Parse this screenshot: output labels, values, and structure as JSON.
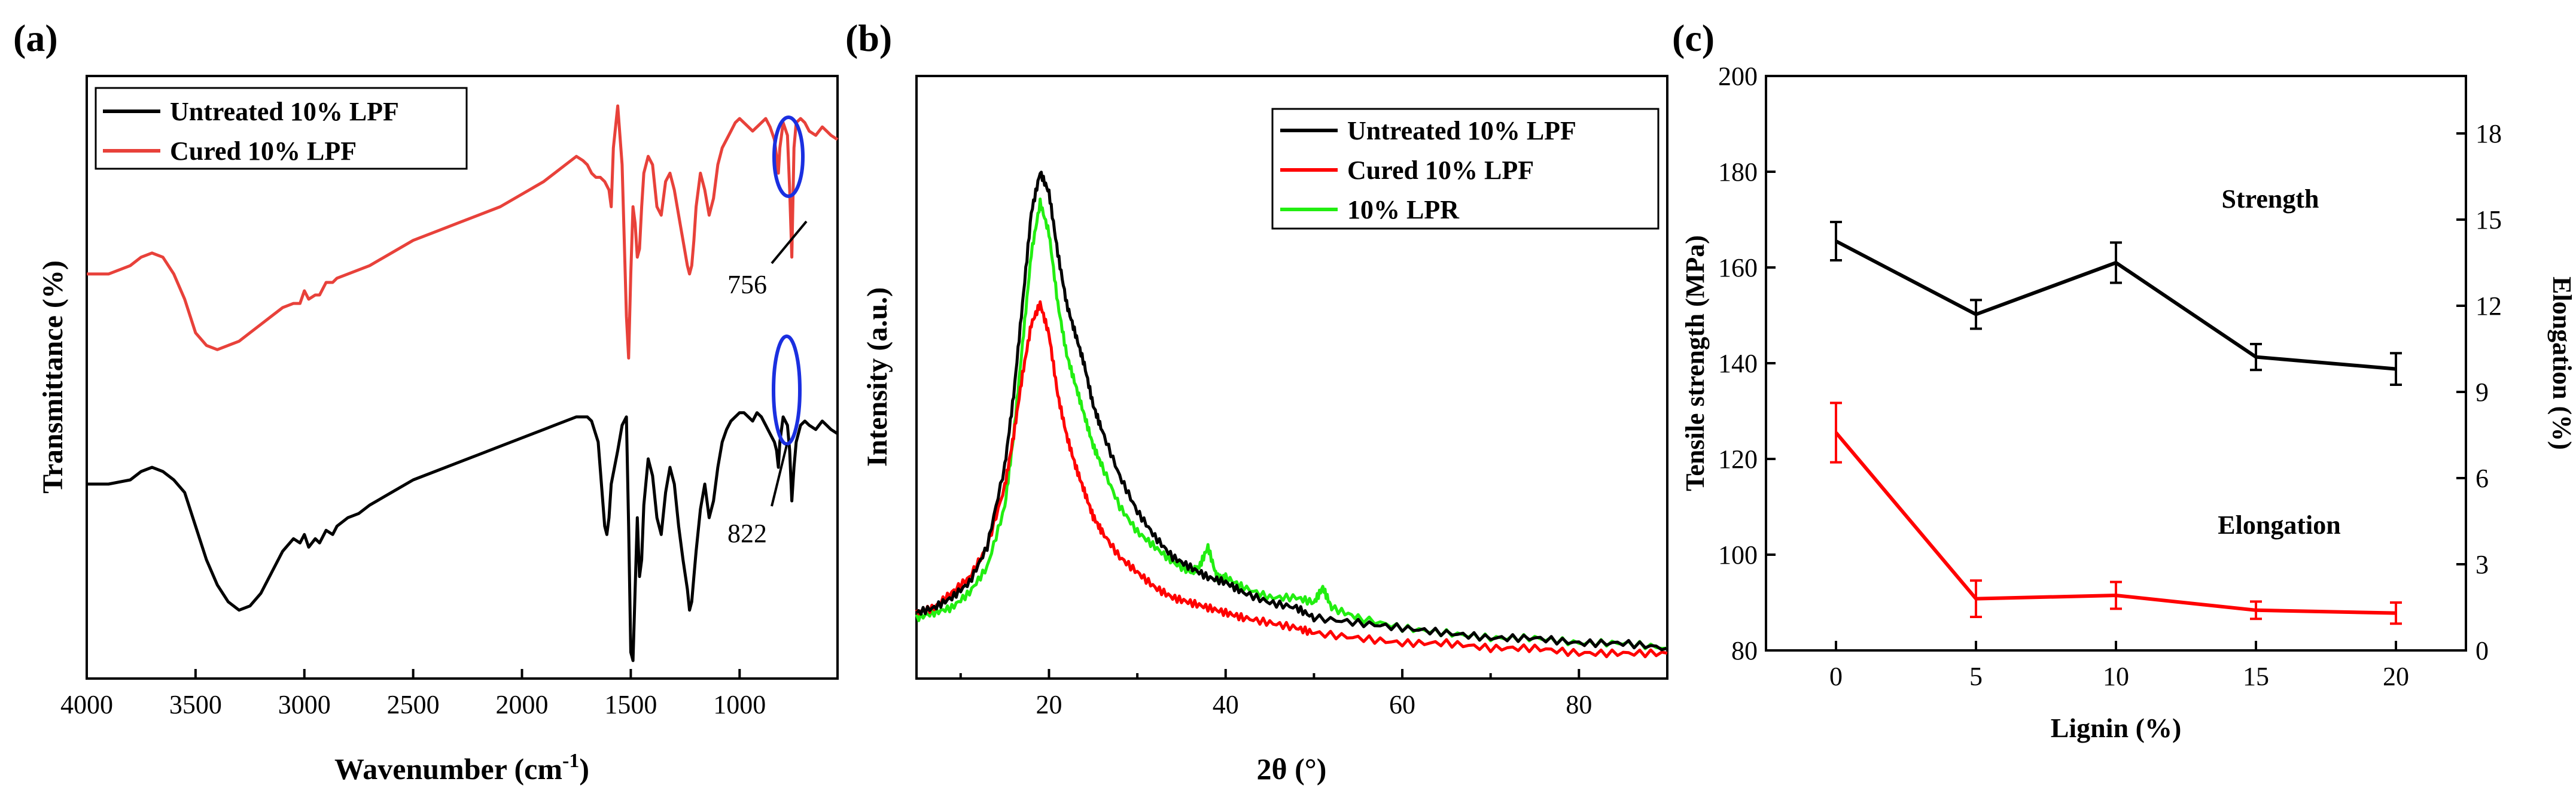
{
  "panels": {
    "a": "(a)",
    "b": "(b)",
    "c": "(c)"
  },
  "colors": {
    "black": "#000000",
    "red": "#ff0000",
    "ftir_red": "#e8413a",
    "green": "#22ee11",
    "blue": "#1a2fe0"
  },
  "chart_data": [
    {
      "id": "a",
      "type": "line",
      "xlabel": "Wavenumber (cm",
      "xlabel_sup": "-1",
      "xlabel_tail": ")",
      "ylabel": "Transmittance (%)",
      "xlim": [
        4000,
        550
      ],
      "xticks": [
        "4000",
        "3500",
        "3000",
        "2500",
        "2000",
        "1500",
        "1000"
      ],
      "xtick_values": [
        4000,
        3500,
        3000,
        2500,
        2000,
        1500,
        1000
      ],
      "legend": [
        "Untreated 10% LPF",
        "Cured 10% LPF"
      ],
      "annotations": [
        {
          "text": "756",
          "x": 760
        },
        {
          "text": "822",
          "x": 822
        }
      ],
      "series": [
        {
          "name": "Untreated 10% LPF",
          "color": "#000000",
          "x": [
            4000,
            3900,
            3800,
            3750,
            3700,
            3650,
            3600,
            3550,
            3500,
            3450,
            3400,
            3350,
            3300,
            3250,
            3200,
            3150,
            3100,
            3050,
            3020,
            3000,
            2980,
            2950,
            2930,
            2900,
            2870,
            2850,
            2800,
            2750,
            2700,
            2600,
            2500,
            2400,
            2300,
            2200,
            2100,
            2000,
            1900,
            1850,
            1800,
            1750,
            1700,
            1680,
            1650,
            1620,
            1610,
            1600,
            1590,
            1560,
            1540,
            1520,
            1510,
            1500,
            1490,
            1480,
            1470,
            1460,
            1450,
            1440,
            1420,
            1400,
            1380,
            1360,
            1340,
            1320,
            1300,
            1280,
            1260,
            1240,
            1230,
            1220,
            1210,
            1200,
            1180,
            1160,
            1140,
            1120,
            1100,
            1080,
            1060,
            1040,
            1020,
            1000,
            980,
            960,
            940,
            920,
            900,
            880,
            860,
            840,
            830,
            822,
            815,
            800,
            780,
            770,
            760,
            750,
            740,
            720,
            700,
            680,
            650,
            620,
            600,
            580,
            550
          ],
          "y": [
            30,
            30,
            31,
            33,
            34,
            33,
            31,
            28,
            20,
            12,
            6,
            2,
            0,
            1,
            4,
            9,
            14,
            17,
            16,
            18,
            15,
            17,
            16,
            19,
            18,
            20,
            22,
            23,
            25,
            28,
            31,
            33,
            35,
            37,
            39,
            41,
            43,
            44,
            45,
            46,
            46,
            45,
            40,
            20,
            18,
            22,
            30,
            38,
            44,
            46,
            20,
            -10,
            -12,
            5,
            22,
            8,
            12,
            25,
            36,
            32,
            22,
            18,
            28,
            34,
            30,
            20,
            12,
            5,
            0,
            2,
            8,
            14,
            24,
            30,
            22,
            26,
            34,
            40,
            43,
            45,
            46,
            47,
            47,
            46,
            45,
            47,
            46,
            44,
            42,
            40,
            38,
            34,
            40,
            46,
            44,
            38,
            26,
            34,
            40,
            44,
            45,
            44,
            43,
            45,
            44,
            43,
            42
          ],
          "ylim": [
            -12,
            120
          ]
        },
        {
          "name": "Cured 10% LPF",
          "color": "#e8413a",
          "x": [
            4000,
            3900,
            3800,
            3750,
            3700,
            3650,
            3600,
            3550,
            3500,
            3450,
            3400,
            3350,
            3300,
            3250,
            3200,
            3150,
            3100,
            3050,
            3020,
            3000,
            2980,
            2950,
            2930,
            2900,
            2870,
            2850,
            2800,
            2750,
            2700,
            2600,
            2500,
            2400,
            2300,
            2200,
            2100,
            2000,
            1900,
            1850,
            1800,
            1750,
            1720,
            1700,
            1680,
            1660,
            1640,
            1620,
            1600,
            1590,
            1580,
            1560,
            1540,
            1520,
            1510,
            1500,
            1490,
            1480,
            1470,
            1460,
            1450,
            1440,
            1420,
            1400,
            1380,
            1360,
            1340,
            1320,
            1300,
            1280,
            1260,
            1240,
            1230,
            1220,
            1210,
            1200,
            1180,
            1160,
            1140,
            1120,
            1100,
            1080,
            1060,
            1040,
            1020,
            1000,
            980,
            960,
            940,
            920,
            900,
            880,
            860,
            840,
            830,
            822,
            815,
            800,
            780,
            770,
            760,
            750,
            740,
            720,
            700,
            680,
            650,
            620,
            600,
            580,
            550
          ],
          "y": [
            80,
            80,
            82,
            84,
            85,
            84,
            80,
            74,
            66,
            63,
            62,
            63,
            64,
            66,
            68,
            70,
            72,
            73,
            73,
            76,
            74,
            75,
            75,
            78,
            78,
            79,
            80,
            81,
            82,
            85,
            88,
            90,
            92,
            94,
            96,
            99,
            102,
            104,
            106,
            108,
            107,
            106,
            104,
            103,
            103,
            102,
            100,
            96,
            110,
            120,
            106,
            70,
            60,
            80,
            96,
            92,
            84,
            86,
            96,
            104,
            108,
            106,
            96,
            94,
            102,
            104,
            100,
            94,
            88,
            82,
            80,
            82,
            88,
            96,
            104,
            100,
            94,
            98,
            106,
            110,
            112,
            114,
            116,
            117,
            116,
            115,
            114,
            115,
            116,
            117,
            115,
            112,
            108,
            104,
            110,
            116,
            113,
            100,
            84,
            110,
            116,
            117,
            116,
            114,
            113,
            115,
            114,
            113,
            112
          ],
          "ylim": [
            -12,
            120
          ]
        }
      ]
    },
    {
      "id": "b",
      "type": "line",
      "xlabel": "2θ (°)",
      "ylabel": "Intensity (a.u.)",
      "xlim": [
        5,
        90
      ],
      "xticks": [
        "20",
        "40",
        "60",
        "80"
      ],
      "xtick_values": [
        20,
        40,
        60,
        80
      ],
      "legend": [
        "Untreated 10% LPF",
        "Cured 10% LPF",
        "10% LPR"
      ],
      "series": [
        {
          "name": "Untreated 10% LPF",
          "color": "#000000",
          "x": [
            5,
            7,
            9,
            11,
            13,
            15,
            16,
            17,
            18,
            19,
            20,
            21,
            22,
            23,
            24,
            25,
            26,
            28,
            30,
            32,
            34,
            36,
            38,
            40,
            42,
            45,
            48,
            50,
            55,
            60,
            65,
            70,
            75,
            80,
            85,
            90
          ],
          "y": [
            9,
            10,
            12,
            15,
            22,
            38,
            52,
            70,
            88,
            96,
            92,
            80,
            70,
            64,
            58,
            50,
            45,
            36,
            29,
            24,
            20,
            18,
            16,
            15,
            13,
            11,
            10,
            8,
            7,
            6,
            5,
            4,
            4,
            3,
            3,
            2
          ]
        },
        {
          "name": "Cured 10% LPF",
          "color": "#ff0000",
          "x": [
            5,
            7,
            9,
            11,
            13,
            15,
            16,
            17,
            18,
            19,
            20,
            21,
            22,
            23,
            24,
            25,
            26,
            28,
            30,
            32,
            34,
            36,
            38,
            40,
            42,
            45,
            48,
            50,
            55,
            60,
            65,
            70,
            75,
            80,
            85,
            90
          ],
          "y": [
            9,
            10,
            13,
            16,
            22,
            34,
            44,
            56,
            66,
            70,
            64,
            52,
            44,
            38,
            33,
            28,
            25,
            20,
            17,
            14,
            12,
            11,
            10,
            9,
            8,
            7,
            6,
            5,
            4,
            3,
            3,
            2,
            2,
            1,
            1,
            1
          ]
        },
        {
          "name": "10% LPR",
          "color": "#22ee11",
          "x": [
            5,
            7,
            9,
            11,
            13,
            15,
            16,
            17,
            18,
            19,
            20,
            21,
            22,
            23,
            24,
            25,
            26,
            28,
            30,
            32,
            34,
            36,
            37,
            38,
            39,
            40,
            42,
            45,
            48,
            50,
            51,
            52,
            55,
            60,
            65,
            70,
            75,
            80,
            85,
            90
          ],
          "y": [
            8,
            9,
            10,
            13,
            18,
            30,
            44,
            62,
            80,
            90,
            84,
            70,
            60,
            54,
            48,
            42,
            38,
            30,
            25,
            22,
            19,
            17,
            18,
            22,
            16,
            16,
            14,
            12,
            12,
            11,
            14,
            10,
            8,
            6,
            5,
            4,
            4,
            3,
            3,
            2
          ]
        }
      ],
      "ylim": [
        -4,
        115
      ]
    },
    {
      "id": "c",
      "type": "line",
      "xlabel": "Lignin (%)",
      "ylabel": "Tensile strength (MPa)",
      "y2label": "Elongation (%)",
      "categories": [
        0,
        5,
        10,
        15,
        20
      ],
      "xticks": [
        "0",
        "5",
        "10",
        "15",
        "20"
      ],
      "yticks": [
        "80",
        "100",
        "120",
        "140",
        "160",
        "180",
        "200"
      ],
      "ytick_values": [
        80,
        100,
        120,
        140,
        160,
        180,
        200
      ],
      "y2ticks": [
        "0",
        "3",
        "6",
        "9",
        "12",
        "15",
        "18"
      ],
      "y2tick_values": [
        0,
        3,
        6,
        9,
        12,
        15,
        18
      ],
      "ylim": [
        80,
        200
      ],
      "y2lim": [
        0,
        20
      ],
      "xlim": [
        -2.5,
        22.5
      ],
      "annotations": [
        {
          "text": "Strength",
          "x": 12.5,
          "y": 170
        },
        {
          "text": "Elongation",
          "x": 13.0,
          "y": 104
        }
      ],
      "series": [
        {
          "name": "Strength",
          "axis": "left",
          "color": "#000000",
          "values": [
            165.5,
            150.2,
            161.0,
            141.3,
            138.8
          ],
          "errors": [
            4.0,
            3.0,
            4.2,
            2.7,
            3.3
          ]
        },
        {
          "name": "Elongation",
          "axis": "left",
          "color": "#ff0000",
          "values": [
            125.5,
            90.8,
            91.5,
            88.4,
            87.8
          ],
          "errors": [
            6.2,
            3.8,
            2.8,
            1.8,
            2.2
          ]
        }
      ]
    }
  ]
}
